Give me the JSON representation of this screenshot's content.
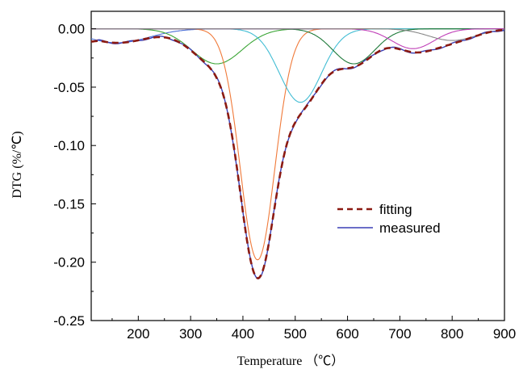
{
  "chart_data": {
    "type": "line",
    "xlabel": "Temperature （℃）",
    "ylabel": "DTG  (%/℃)",
    "xlim": [
      110,
      900
    ],
    "ylim": [
      -0.25,
      0.015
    ],
    "xticks": [
      200,
      300,
      400,
      500,
      600,
      700,
      800,
      900
    ],
    "xtick_labels": [
      "200",
      "300",
      "400",
      "500",
      "600",
      "700",
      "800",
      "900"
    ],
    "yticks": [
      0.0,
      -0.05,
      -0.1,
      -0.15,
      -0.2,
      -0.25
    ],
    "ytick_labels": [
      "0.00",
      "-0.05",
      "-0.10",
      "-0.15",
      "-0.20",
      "-0.25"
    ],
    "grid": false,
    "legend_position": "center-right",
    "peaks": [
      {
        "color": "#4b6fd6",
        "center": 160,
        "height": -0.012,
        "width": 60
      },
      {
        "color": "#3aa535",
        "center": 350,
        "height": -0.03,
        "width": 48
      },
      {
        "color": "#f07a3a",
        "center": 428,
        "height": -0.198,
        "width": 33
      },
      {
        "color": "#42bdd4",
        "center": 510,
        "height": -0.063,
        "width": 40
      },
      {
        "color": "#1f7a3a",
        "center": 612,
        "height": -0.03,
        "width": 40
      },
      {
        "color": "#c040b8",
        "center": 725,
        "height": -0.017,
        "width": 40
      },
      {
        "color": "#888888",
        "center": 800,
        "height": -0.01,
        "width": 45
      }
    ],
    "series": [
      {
        "name": "fitting",
        "color": "#8b1a12",
        "style": "dashed"
      },
      {
        "name": "measured",
        "color": "#3a3fb5",
        "style": "solid"
      }
    ]
  }
}
